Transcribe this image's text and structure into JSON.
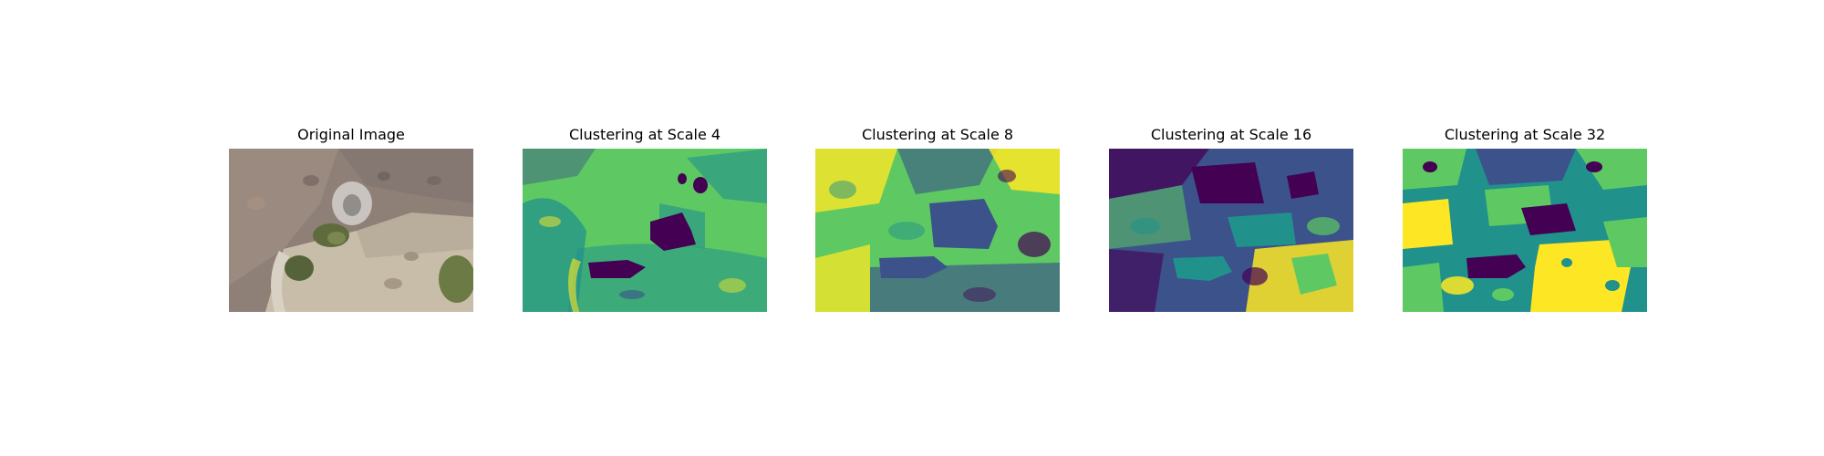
{
  "figure": {
    "panels": [
      {
        "title": "Original Image",
        "kind": "photo"
      },
      {
        "title": "Clustering at Scale 4",
        "kind": "cluster-map"
      },
      {
        "title": "Clustering at Scale 8",
        "kind": "cluster-map"
      },
      {
        "title": "Clustering at Scale 16",
        "kind": "cluster-map"
      },
      {
        "title": "Clustering at Scale 32",
        "kind": "cluster-map"
      }
    ],
    "colors": {
      "background": "#ffffff",
      "cluster_palette": [
        "#440154",
        "#3b528b",
        "#21918c",
        "#5ec962",
        "#fde725"
      ],
      "photo_palette": [
        "#8a7a70",
        "#a69488",
        "#c4b8a8",
        "#6f7a55",
        "#4f5f3a",
        "#d8d2c6"
      ]
    }
  }
}
